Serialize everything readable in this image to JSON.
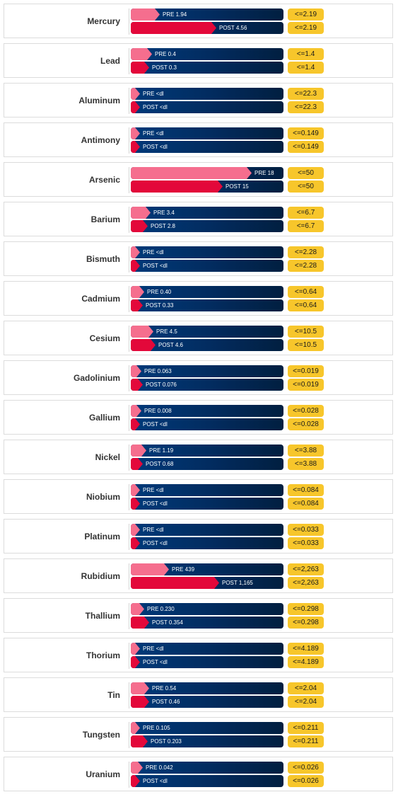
{
  "colors": {
    "pre": "#f56e8e",
    "post": "#e3083a",
    "track": "#022b5e",
    "limit": "#f7c62b"
  },
  "chart_data": {
    "type": "bar",
    "scale_note": "pre/post bars scaled to each element's limit",
    "rows": [
      {
        "name": "Mercury",
        "pre": 1.94,
        "pre_label": "PRE 1.94",
        "post": 4.56,
        "post_label": "POST 4.56",
        "limit": 2.19,
        "limit_label": "<=2.19"
      },
      {
        "name": "Lead",
        "pre": 0.4,
        "pre_label": "PRE 0.4",
        "post": 0.3,
        "post_label": "POST 0.3",
        "limit": 1.4,
        "limit_label": "<=1.4"
      },
      {
        "name": "Aluminum",
        "pre": 0,
        "pre_label": "PRE <dl",
        "post": 0,
        "post_label": "POST <dl",
        "limit": 22.3,
        "limit_label": "<=22.3"
      },
      {
        "name": "Antimony",
        "pre": 0,
        "pre_label": "PRE <dl",
        "post": 0,
        "post_label": "POST <dl",
        "limit": 0.149,
        "limit_label": "<=0.149"
      },
      {
        "name": "Arsenic",
        "pre": 18,
        "pre_label": "PRE 18",
        "post": 15,
        "post_label": "POST 15",
        "limit": 50,
        "limit_label": "<=50"
      },
      {
        "name": "Barium",
        "pre": 3.4,
        "pre_label": "PRE 3.4",
        "post": 2.8,
        "post_label": "POST 2.8",
        "limit": 6.7,
        "limit_label": "<=6.7"
      },
      {
        "name": "Bismuth",
        "pre": 0,
        "pre_label": "PRE <dl",
        "post": 0,
        "post_label": "POST <dl",
        "limit": 2.28,
        "limit_label": "<=2.28"
      },
      {
        "name": "Cadmium",
        "pre": 0.4,
        "pre_label": "PRE 0.40",
        "post": 0.33,
        "post_label": "POST 0.33",
        "limit": 0.64,
        "limit_label": "<=0.64"
      },
      {
        "name": "Cesium",
        "pre": 4.5,
        "pre_label": "PRE 4.5",
        "post": 4.6,
        "post_label": "POST 4.6",
        "limit": 10.5,
        "limit_label": "<=10.5"
      },
      {
        "name": "Gadolinium",
        "pre": 0.063,
        "pre_label": "PRE 0.063",
        "post": 0.076,
        "post_label": "POST 0.076",
        "limit": 0.019,
        "limit_label": "<=0.019"
      },
      {
        "name": "Gallium",
        "pre": 0.008,
        "pre_label": "PRE 0.008",
        "post": 0,
        "post_label": "POST <dl",
        "limit": 0.028,
        "limit_label": "<=0.028"
      },
      {
        "name": "Nickel",
        "pre": 1.19,
        "pre_label": "PRE 1.19",
        "post": 0.68,
        "post_label": "POST 0.68",
        "limit": 3.88,
        "limit_label": "<=3.88"
      },
      {
        "name": "Niobium",
        "pre": 0,
        "pre_label": "PRE <dl",
        "post": 0,
        "post_label": "POST <dl",
        "limit": 0.084,
        "limit_label": "<=0.084"
      },
      {
        "name": "Platinum",
        "pre": 0,
        "pre_label": "PRE <dl",
        "post": 0,
        "post_label": "POST <dl",
        "limit": 0.033,
        "limit_label": "<=0.033"
      },
      {
        "name": "Rubidium",
        "pre": 439,
        "pre_label": "PRE 439",
        "post": 1165,
        "post_label": "POST 1,165",
        "limit": 2263,
        "limit_label": "<=2,263"
      },
      {
        "name": "Thallium",
        "pre": 0.23,
        "pre_label": "PRE 0.230",
        "post": 0.354,
        "post_label": "POST 0.354",
        "limit": 0.298,
        "limit_label": "<=0.298"
      },
      {
        "name": "Thorium",
        "pre": 0,
        "pre_label": "PRE <dl",
        "post": 0,
        "post_label": "POST <dl",
        "limit": 4.189,
        "limit_label": "<=4.189"
      },
      {
        "name": "Tin",
        "pre": 0.54,
        "pre_label": "PRE 0.54",
        "post": 0.46,
        "post_label": "POST 0.46",
        "limit": 2.04,
        "limit_label": "<=2.04"
      },
      {
        "name": "Tungsten",
        "pre": 0.105,
        "pre_label": "PRE 0.105",
        "post": 0.203,
        "post_label": "POST 0.203",
        "limit": 0.211,
        "limit_label": "<=0.211"
      },
      {
        "name": "Uranium",
        "pre": 0.042,
        "pre_label": "PRE 0.042",
        "post": 0,
        "post_label": "POST <dl",
        "limit": 0.026,
        "limit_label": "<=0.026"
      }
    ],
    "bar_fraction": [
      {
        "pre": 0.19,
        "post": 0.56
      },
      {
        "pre": 0.14,
        "post": 0.12
      },
      {
        "pre": 0.06,
        "post": 0.06
      },
      {
        "pre": 0.06,
        "post": 0.06
      },
      {
        "pre": 0.79,
        "post": 0.6
      },
      {
        "pre": 0.13,
        "post": 0.11
      },
      {
        "pre": 0.06,
        "post": 0.06
      },
      {
        "pre": 0.09,
        "post": 0.08
      },
      {
        "pre": 0.15,
        "post": 0.16
      },
      {
        "pre": 0.07,
        "post": 0.08
      },
      {
        "pre": 0.07,
        "post": 0.06
      },
      {
        "pre": 0.1,
        "post": 0.08
      },
      {
        "pre": 0.06,
        "post": 0.06
      },
      {
        "pre": 0.06,
        "post": 0.06
      },
      {
        "pre": 0.25,
        "post": 0.58
      },
      {
        "pre": 0.09,
        "post": 0.12
      },
      {
        "pre": 0.06,
        "post": 0.06
      },
      {
        "pre": 0.12,
        "post": 0.12
      },
      {
        "pre": 0.06,
        "post": 0.11
      },
      {
        "pre": 0.08,
        "post": 0.06
      }
    ]
  }
}
